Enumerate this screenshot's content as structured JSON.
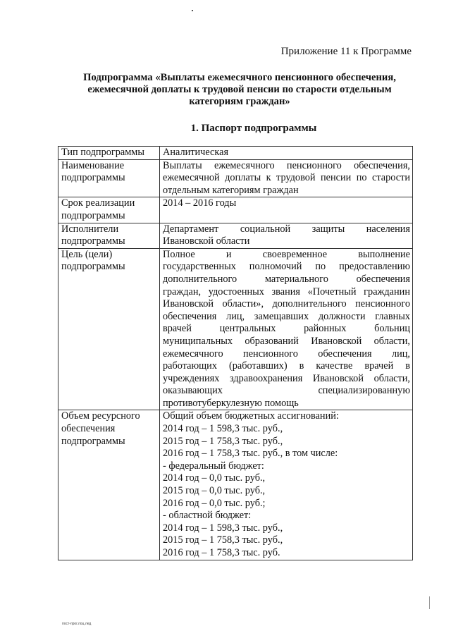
{
  "appendix": "Приложение 11 к Программе",
  "title_lines": [
    "Подпрограмма «Выплаты ежемесячного пенсионного обеспечения,",
    "ежемесячной доплаты к трудовой пенсии по старости отдельным",
    "категориям граждан»"
  ],
  "section_heading": "1. Паспорт подпрограммы",
  "passport": [
    {
      "key": [
        "Тип подпрограммы"
      ],
      "value": [
        "Аналитическая"
      ]
    },
    {
      "key": [
        "Наименование",
        "подпрограммы"
      ],
      "value": [
        "Выплаты ежемесячного пенсионного обеспечения,",
        "ежемесячной доплаты к трудовой пенсии по старости",
        "отдельным категориям граждан"
      ]
    },
    {
      "key": [
        "Срок реализации",
        "подпрограммы"
      ],
      "value": [
        "2014 – 2016 годы"
      ]
    },
    {
      "key": [
        "Исполнители",
        "подпрограммы"
      ],
      "value": [
        "Департамент социальной защиты населения",
        "Ивановской области"
      ]
    },
    {
      "key": [
        "Цель (цели)",
        "подпрограммы"
      ],
      "value": [
        "Полное и своевременное выполнение",
        "государственных полномочий по предоставлению",
        "дополнительного материального обеспечения",
        "граждан, удостоенных звания «Почетный гражданин",
        "Ивановской области», дополнительного пенсионного",
        "обеспечения лиц, замещавших должности главных",
        "врачей центральных районных больниц",
        "муниципальных образований Ивановской области,",
        "ежемесячного пенсионного обеспечения лиц,",
        "работающих (работавших) в качестве врачей в",
        "учреждениях здравоохранения Ивановской области,",
        "оказывающих специализированную",
        "противотуберкулезную помощь"
      ]
    },
    {
      "key": [
        "Объем ресурсного",
        "обеспечения",
        "подпрограммы"
      ],
      "value": [
        "Общий объем бюджетных ассигнований:",
        "2014 год – 1 598,3 тыс. руб.,",
        "2015 год – 1 758,3 тыс. руб.,",
        "2016 год – 1 758,3 тыс. руб., в том числе:",
        "- федеральный бюджет:",
        "2014 год – 0,0 тыс. руб.,",
        "2015 год – 0,0 тыс. руб.,",
        "2016 год – 0,0 тыс. руб.;",
        "- областной бюджет:",
        "2014 год – 1 598,3 тыс. руб.,",
        "2015 год – 1 758,3 тыс. руб.,",
        "2016 год – 1 758,3 тыс. руб."
      ]
    }
  ],
  "footer": "пост-прог.лоц.лед"
}
